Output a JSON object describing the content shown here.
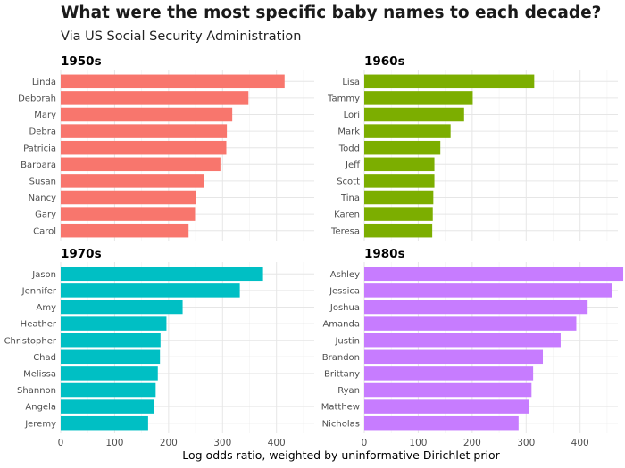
{
  "header": {
    "title": "What were the most specific baby names to each decade?",
    "subtitle": "Via US Social Security Administration"
  },
  "chart_data": {
    "type": "bar",
    "orientation": "horizontal",
    "title": "What were the most specific baby names to each decade?",
    "subtitle": "Via US Social Security Administration",
    "xlabel": "Log odds ratio, weighted by uninformative Dirichlet prior",
    "ylabel": "",
    "xlim": [
      0,
      470
    ],
    "x_ticks": [
      0,
      100,
      200,
      300,
      400
    ],
    "grid": true,
    "legend": "none",
    "panels": [
      {
        "name": "1950s",
        "color": "#F8766D",
        "categories": [
          "Linda",
          "Deborah",
          "Mary",
          "Debra",
          "Patricia",
          "Barbara",
          "Susan",
          "Nancy",
          "Gary",
          "Carol"
        ],
        "values": [
          415,
          348,
          318,
          308,
          307,
          296,
          265,
          251,
          249,
          237
        ]
      },
      {
        "name": "1960s",
        "color": "#7CAE00",
        "categories": [
          "Lisa",
          "Tammy",
          "Lori",
          "Mark",
          "Todd",
          "Jeff",
          "Scott",
          "Tina",
          "Karen",
          "Teresa"
        ],
        "values": [
          315,
          201,
          185,
          160,
          141,
          130,
          130,
          128,
          127,
          126
        ]
      },
      {
        "name": "1970s",
        "color": "#00BFC4",
        "categories": [
          "Jason",
          "Jennifer",
          "Amy",
          "Heather",
          "Christopher",
          "Chad",
          "Melissa",
          "Shannon",
          "Angela",
          "Jeremy"
        ],
        "values": [
          375,
          332,
          226,
          196,
          185,
          184,
          180,
          176,
          173,
          162
        ]
      },
      {
        "name": "1980s",
        "color": "#C77CFF",
        "categories": [
          "Ashley",
          "Jessica",
          "Joshua",
          "Amanda",
          "Justin",
          "Brandon",
          "Brittany",
          "Ryan",
          "Matthew",
          "Nicholas"
        ],
        "values": [
          480,
          460,
          414,
          393,
          364,
          331,
          313,
          310,
          306,
          286
        ]
      }
    ]
  }
}
